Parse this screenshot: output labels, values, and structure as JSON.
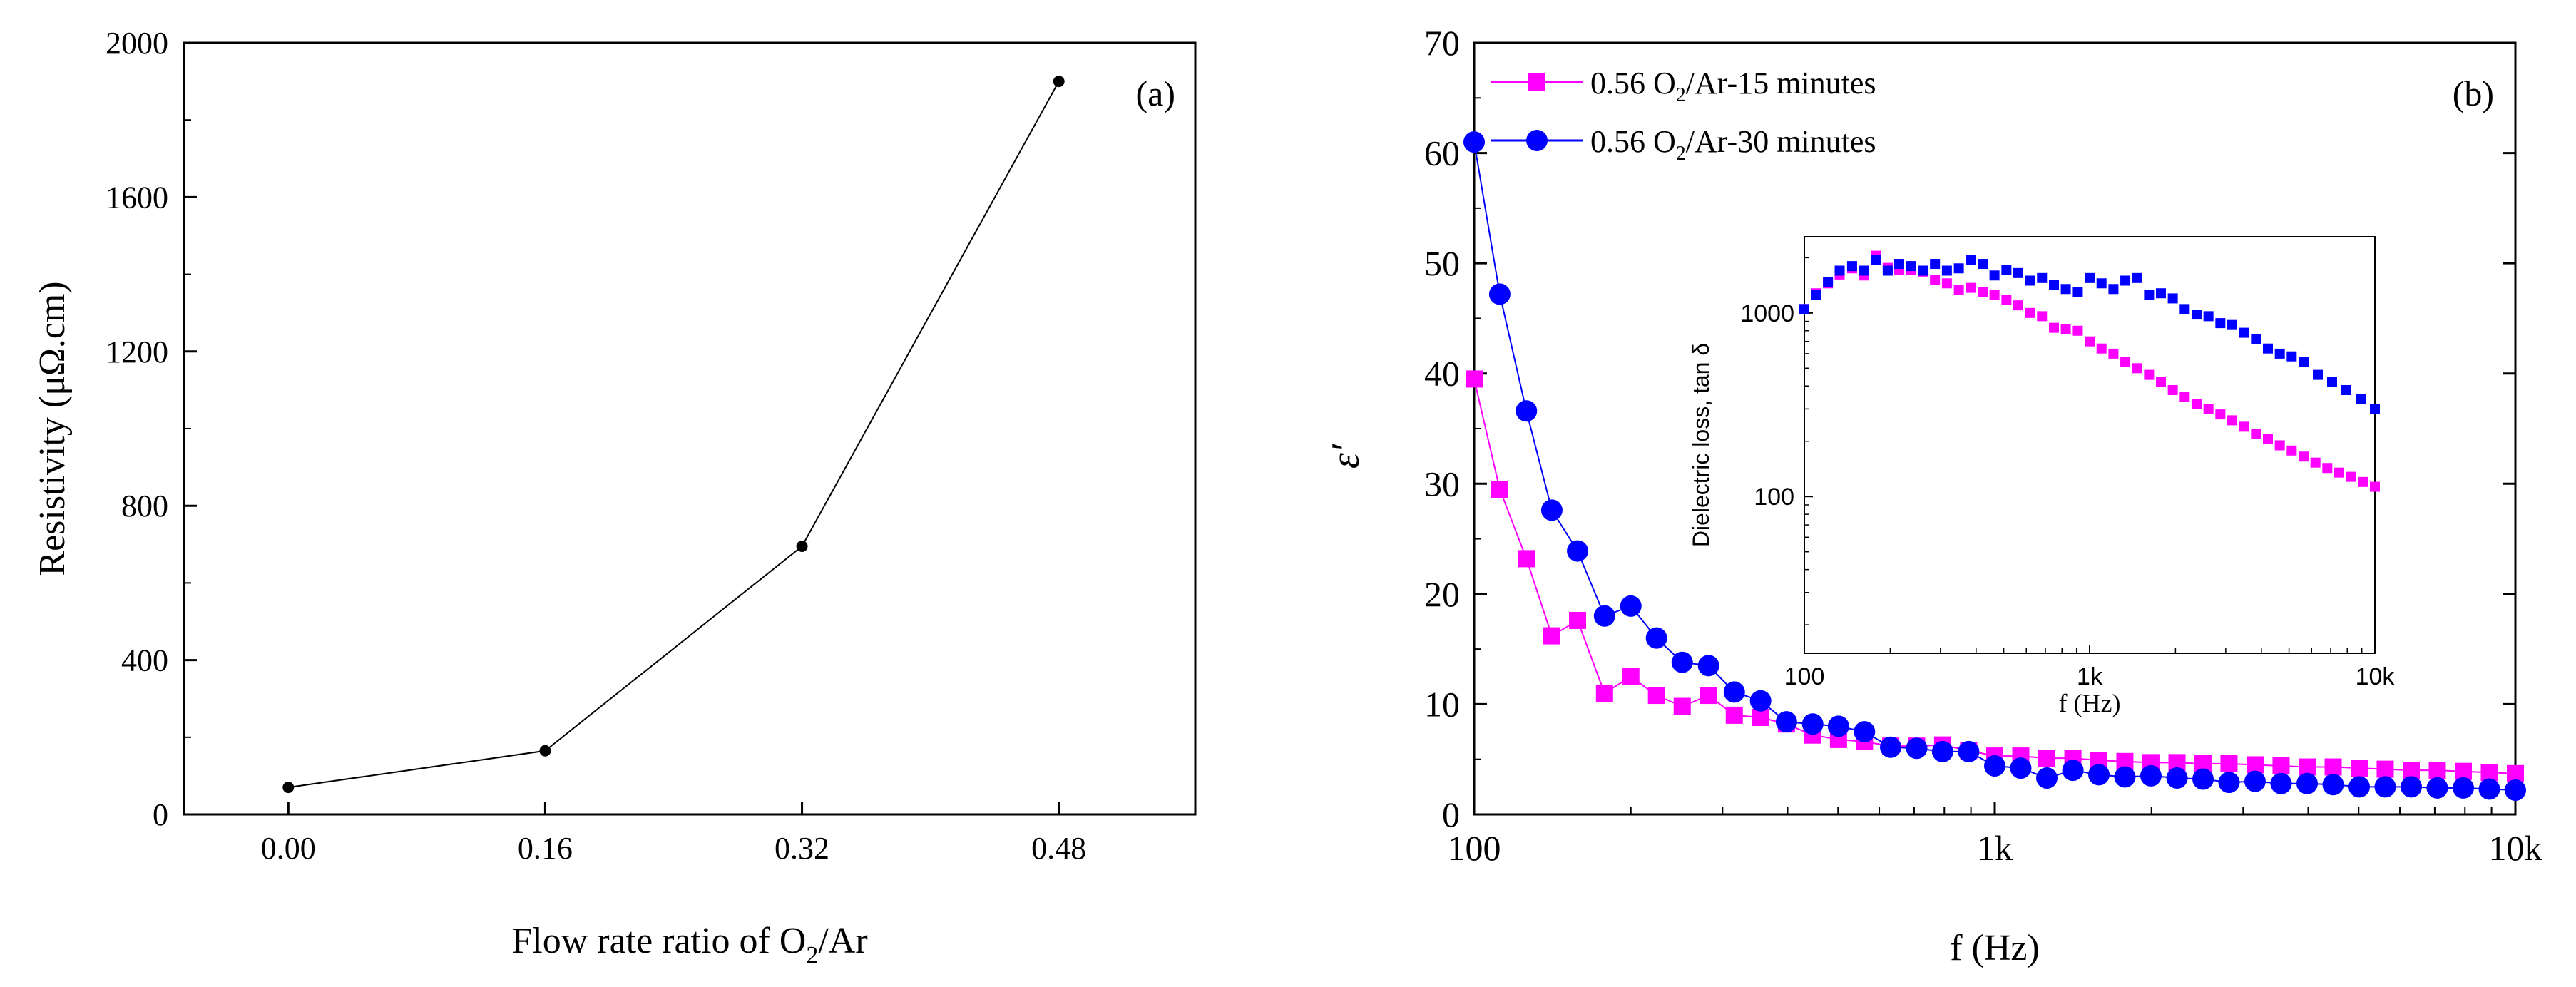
{
  "chart_data": [
    {
      "type": "line",
      "panel_label": "(a)",
      "title": "",
      "xlabel": {
        "main": "Flow rate ratio of O",
        "sub": "2",
        "rest": "/Ar"
      },
      "ylabel": "Resistivity  (μΩ.cm)",
      "x": [
        0.0,
        0.16,
        0.32,
        0.48
      ],
      "xticks": [
        "0.00",
        "0.16",
        "0.32",
        "0.48"
      ],
      "yticks": [
        "0",
        "400",
        "800",
        "1200",
        "1600",
        "2000"
      ],
      "xlim": [
        -0.065,
        0.565
      ],
      "ylim": [
        0,
        2000
      ],
      "series": [
        {
          "name": "Resistivity",
          "values": [
            70,
            165,
            695,
            1900
          ],
          "color": "#000000"
        }
      ],
      "grid": false,
      "legend": "none"
    },
    {
      "type": "line",
      "panel_label": "(b)",
      "title": "",
      "xlabel": "f (Hz)",
      "ylabel": "ε′",
      "xscale": "log",
      "xlim": [
        100,
        10000
      ],
      "ylim": [
        0,
        70
      ],
      "xticks": [
        "100",
        "1k",
        "10k"
      ],
      "yticks": [
        "0",
        "10",
        "20",
        "30",
        "40",
        "50",
        "60",
        "70"
      ],
      "legend_position": "top-left",
      "series": [
        {
          "name": "0.56 O2/Ar-15 minutes",
          "label": {
            "pre": "0.56 O",
            "sub": "2",
            "post": "/Ar-15 minutes"
          },
          "marker": "square",
          "color": "#ff00ff",
          "x": [
            100,
            112,
            126,
            141,
            158,
            178,
            200,
            224,
            251,
            282,
            316,
            355,
            398,
            447,
            501,
            562,
            631,
            708,
            794,
            891,
            1000,
            1122,
            1259,
            1413,
            1585,
            1778,
            1995,
            2239,
            2512,
            2818,
            3162,
            3548,
            3981,
            4467,
            5012,
            5623,
            6310,
            7079,
            7943,
            8913,
            10000
          ],
          "values": [
            39.5,
            29.5,
            23.2,
            16.2,
            17.6,
            11.0,
            12.5,
            10.8,
            9.8,
            10.8,
            9.0,
            8.8,
            8.2,
            7.2,
            6.8,
            6.6,
            6.2,
            6.2,
            6.3,
            5.8,
            5.3,
            5.3,
            5.1,
            5.1,
            4.9,
            4.8,
            4.7,
            4.7,
            4.6,
            4.6,
            4.5,
            4.4,
            4.3,
            4.3,
            4.2,
            4.1,
            4.0,
            4.0,
            3.9,
            3.8,
            3.7
          ]
        },
        {
          "name": "0.56 O2/Ar-30 minutes",
          "label": {
            "pre": "0.56 O",
            "sub": "2",
            "post": "/Ar-30 minutes"
          },
          "marker": "circle",
          "color": "#0000ff",
          "x": [
            100,
            112,
            126,
            141,
            158,
            178,
            200,
            224,
            251,
            282,
            316,
            355,
            398,
            447,
            501,
            562,
            631,
            708,
            794,
            891,
            1000,
            1122,
            1259,
            1413,
            1585,
            1778,
            1995,
            2239,
            2512,
            2818,
            3162,
            3548,
            3981,
            4467,
            5012,
            5623,
            6310,
            7079,
            7943,
            8913,
            10000
          ],
          "values": [
            61.0,
            47.2,
            36.6,
            27.6,
            23.9,
            18.0,
            18.9,
            16.0,
            13.8,
            13.5,
            11.1,
            10.3,
            8.4,
            8.2,
            8.0,
            7.5,
            6.1,
            6.0,
            5.7,
            5.7,
            4.4,
            4.2,
            3.3,
            4.0,
            3.6,
            3.4,
            3.5,
            3.3,
            3.2,
            2.9,
            3.0,
            2.8,
            2.8,
            2.7,
            2.5,
            2.5,
            2.5,
            2.4,
            2.4,
            2.3,
            2.2
          ]
        }
      ],
      "inset": {
        "type": "scatter",
        "xlabel": "f (Hz)",
        "ylabel": "Dielectric loss, tan δ",
        "xscale": "log",
        "yscale": "log",
        "xlim": [
          100,
          10000
        ],
        "ylim": [
          14,
          2600
        ],
        "xticks": [
          "100",
          "1k",
          "10k"
        ],
        "yticks": [
          "100",
          "1000"
        ],
        "series": [
          {
            "name": "0.56 O2/Ar-15 minutes",
            "marker": "square",
            "color": "#ff00ff",
            "x": [
              100,
              110,
              121,
              133,
              147,
              162,
              178,
              196,
              215,
              237,
              261,
              287,
              316,
              348,
              383,
              422,
              464,
              511,
              562,
              619,
              681,
              750,
              825,
              909,
              1000,
              1101,
              1212,
              1334,
              1468,
              1616,
              1778,
              1957,
              2154,
              2371,
              2610,
              2873,
              3162,
              3481,
              3831,
              4217,
              4642,
              5109,
              5623,
              6190,
              6813,
              7499,
              8254,
              9085,
              10000
            ],
            "values": [
              1050,
              1280,
              1450,
              1620,
              1750,
              1600,
              2050,
              1760,
              1720,
              1720,
              1680,
              1520,
              1450,
              1330,
              1370,
              1300,
              1250,
              1180,
              1100,
              1000,
              960,
              830,
              820,
              800,
              700,
              640,
              600,
              540,
              500,
              460,
              420,
              380,
              350,
              320,
              300,
              280,
              260,
              240,
              220,
              205,
              190,
              178,
              165,
              153,
              143,
              135,
              128,
              120,
              113
            ]
          },
          {
            "name": "0.56 O2/Ar-30 minutes",
            "marker": "square",
            "color": "#0000ff",
            "x": [
              100,
              110,
              121,
              133,
              147,
              162,
              178,
              196,
              215,
              237,
              261,
              287,
              316,
              348,
              383,
              422,
              464,
              511,
              562,
              619,
              681,
              750,
              825,
              909,
              1000,
              1101,
              1212,
              1334,
              1468,
              1616,
              1778,
              1957,
              2154,
              2371,
              2610,
              2873,
              3162,
              3481,
              3831,
              4217,
              4642,
              5109,
              5623,
              6310,
              7079,
              7943,
              8913,
              10000
            ],
            "values": [
              1050,
              1250,
              1480,
              1700,
              1800,
              1700,
              1950,
              1700,
              1850,
              1800,
              1700,
              1850,
              1700,
              1750,
              1950,
              1850,
              1600,
              1720,
              1650,
              1500,
              1550,
              1420,
              1350,
              1300,
              1550,
              1450,
              1350,
              1500,
              1550,
              1250,
              1280,
              1200,
              1050,
              980,
              960,
              880,
              860,
              780,
              720,
              640,
              600,
              580,
              540,
              460,
              420,
              380,
              340,
              300
            ]
          }
        ]
      }
    }
  ]
}
